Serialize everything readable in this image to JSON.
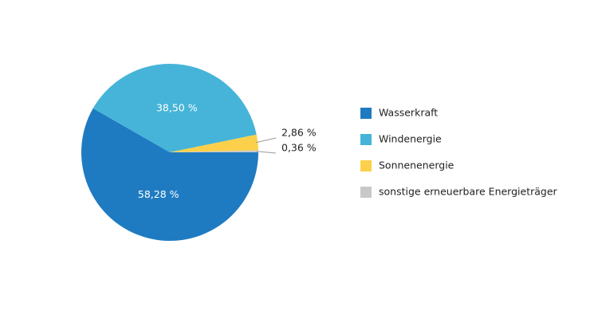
{
  "chart_data": {
    "type": "pie",
    "categories": [
      "Wasserkraft",
      "Windenergie",
      "Sonnenenergie",
      "sonstige erneuerbare Energieträger"
    ],
    "values": [
      58.28,
      38.5,
      2.86,
      0.36
    ],
    "value_labels": [
      "58,28 %",
      "38,50 %",
      "2,86 %",
      "0,36 %"
    ],
    "colors": [
      "#1f7bc1",
      "#45b4d8",
      "#fcd04a",
      "#c8c8c8"
    ],
    "legend": "right"
  }
}
